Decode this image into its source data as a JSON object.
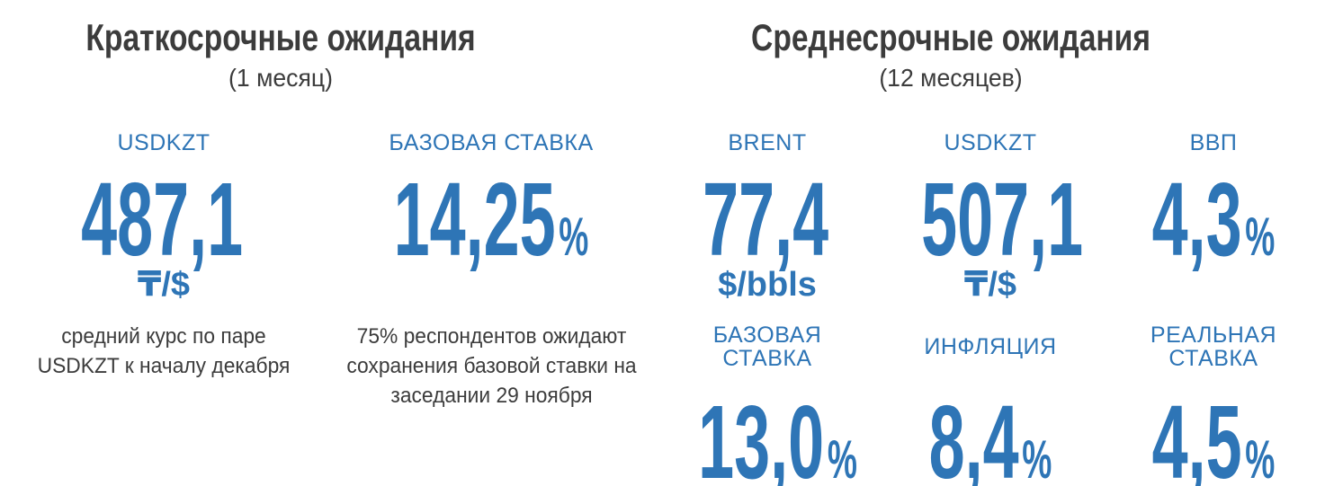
{
  "colors": {
    "accent": "#2E75B6",
    "text_dark": "#3C3C3C",
    "background": "#FFFFFF"
  },
  "left": {
    "title": "Краткосрочные ожидания",
    "subtitle": "(1 месяц)",
    "metrics": [
      {
        "label": "USDKZT",
        "value": "487,1",
        "suffix": "",
        "unit": "₸/$",
        "description": "средний курс по паре USDKZT к началу декабря"
      },
      {
        "label": "БАЗОВАЯ СТАВКА",
        "value": "14,25",
        "suffix": "%",
        "unit": "",
        "description": "75% респондентов ожидают сохранения базовой ставки на заседании 29 ноября"
      }
    ]
  },
  "right": {
    "title": "Среднесрочные ожидания",
    "subtitle": "(12 месяцев)",
    "top_metrics": [
      {
        "label": "BRENT",
        "value": "77,4",
        "suffix": "",
        "unit": "$/bbls"
      },
      {
        "label": "USDKZT",
        "value": "507,1",
        "suffix": "",
        "unit": "₸/$"
      },
      {
        "label": "ВВП",
        "value": "4,3",
        "suffix": "%",
        "unit": ""
      }
    ],
    "bottom_metrics": [
      {
        "label": "БАЗОВАЯ СТАВКА",
        "value": "13,0",
        "suffix": "%"
      },
      {
        "label": "ИНФЛЯЦИЯ",
        "value": "8,4",
        "suffix": "%"
      },
      {
        "label": "РЕАЛЬНАЯ СТАВКА",
        "value": "4,5",
        "suffix": "%"
      }
    ]
  },
  "chart_data": {
    "type": "table",
    "groups": [
      {
        "title": "Краткосрочные ожидания (1 месяц)",
        "metrics": [
          {
            "name": "USDKZT",
            "value": 487.1,
            "unit": "₸/$",
            "note": "средний курс по паре USDKZT к началу декабря"
          },
          {
            "name": "БАЗОВАЯ СТАВКА",
            "value": 14.25,
            "unit": "%",
            "note": "75% респондентов ожидают сохранения базовой ставки на заседании 29 ноября"
          }
        ]
      },
      {
        "title": "Среднесрочные ожидания (12 месяцев)",
        "metrics": [
          {
            "name": "BRENT",
            "value": 77.4,
            "unit": "$/bbls"
          },
          {
            "name": "USDKZT",
            "value": 507.1,
            "unit": "₸/$"
          },
          {
            "name": "ВВП",
            "value": 4.3,
            "unit": "%"
          },
          {
            "name": "БАЗОВАЯ СТАВКА",
            "value": 13.0,
            "unit": "%"
          },
          {
            "name": "ИНФЛЯЦИЯ",
            "value": 8.4,
            "unit": "%"
          },
          {
            "name": "РЕАЛЬНАЯ СТАВКА",
            "value": 4.5,
            "unit": "%"
          }
        ]
      }
    ]
  }
}
